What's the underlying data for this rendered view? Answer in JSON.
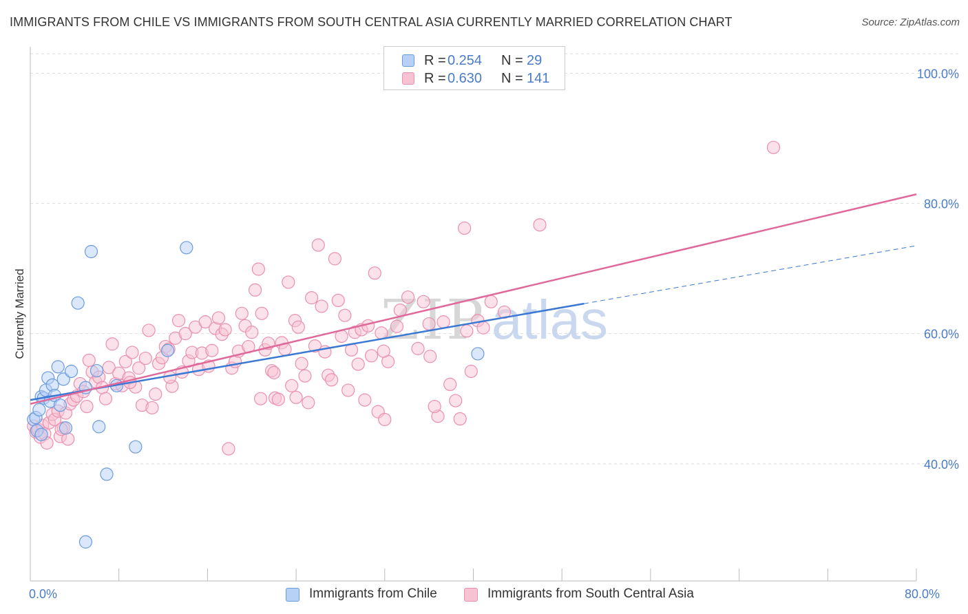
{
  "title": "IMMIGRANTS FROM CHILE VS IMMIGRANTS FROM SOUTH CENTRAL ASIA CURRENTLY MARRIED CORRELATION CHART",
  "source": "Source: ZipAtlas.com",
  "watermark": {
    "zip": "ZIP",
    "atlas": "atlas"
  },
  "colors": {
    "chile_fill": "#b7d0f5",
    "chile_stroke": "#6a9be0",
    "chile_line": "#3a78d4",
    "sca_fill": "#f7c3d3",
    "sca_stroke": "#eb8fae",
    "sca_line": "#e0689a",
    "grid": "#dddddd",
    "axis": "#bbbbbb",
    "tick_label": "#4a7cc9"
  },
  "stats": [
    {
      "r_label": "R =",
      "r_value": "0.254",
      "n_label": "N =",
      "n_value": "29",
      "swatch": "#b7d0f5",
      "swatch_border": "#6a9be0"
    },
    {
      "r_label": "R =",
      "r_value": "0.630",
      "n_label": "N =",
      "n_value": "141",
      "swatch": "#f7c3d3",
      "swatch_border": "#eb8fae"
    }
  ],
  "legend": [
    {
      "label": "Immigrants from Chile",
      "swatch": "#b7d0f5",
      "swatch_border": "#6a9be0"
    },
    {
      "label": "Immigrants from South Central Asia",
      "swatch": "#f7c3d3",
      "swatch_border": "#eb8fae"
    }
  ],
  "chart_data": {
    "type": "scatter",
    "title": "IMMIGRANTS FROM CHILE VS IMMIGRANTS FROM SOUTH CENTRAL ASIA CURRENTLY MARRIED CORRELATION CHART",
    "xlabel": "",
    "ylabel": "Currently Married",
    "xlim": [
      0,
      80
    ],
    "ylim": [
      22,
      103
    ],
    "x_tick_labels": [
      {
        "value": 0,
        "label": "0.0%"
      },
      {
        "value": 80,
        "label": "80.0%"
      }
    ],
    "y_tick_labels": [
      {
        "value": 40,
        "label": "40.0%"
      },
      {
        "value": 60,
        "label": "60.0%"
      },
      {
        "value": 80,
        "label": "80.0%"
      },
      {
        "value": 100,
        "label": "100.0%"
      }
    ],
    "y_gridlines": [
      40,
      60,
      80,
      100
    ],
    "grid": true,
    "legend_position": "bottom-center",
    "series": [
      {
        "name": "Immigrants from Chile",
        "color": "#6a9be0",
        "trend": {
          "x0": 0,
          "y0": 49.8,
          "x1": 50,
          "y1": 64.6,
          "dashed_to_x": 80,
          "dashed_to_y": 73.5
        },
        "points": [
          [
            0.3,
            46.8
          ],
          [
            0.5,
            47.1
          ],
          [
            0.6,
            45.1
          ],
          [
            0.8,
            48.3
          ],
          [
            1.0,
            50.3
          ],
          [
            1.2,
            50.1
          ],
          [
            1.4,
            51.3
          ],
          [
            1.6,
            53.2
          ],
          [
            1.8,
            49.6
          ],
          [
            2.0,
            52.1
          ],
          [
            2.2,
            50.5
          ],
          [
            2.5,
            54.9
          ],
          [
            2.7,
            49.0
          ],
          [
            3.0,
            53.0
          ],
          [
            3.2,
            45.5
          ],
          [
            3.7,
            54.2
          ],
          [
            4.3,
            64.7
          ],
          [
            5.0,
            51.7
          ],
          [
            5.5,
            72.6
          ],
          [
            6.0,
            54.3
          ],
          [
            6.2,
            45.7
          ],
          [
            6.9,
            38.4
          ],
          [
            7.8,
            52.0
          ],
          [
            9.5,
            42.6
          ],
          [
            12.4,
            57.4
          ],
          [
            14.1,
            73.2
          ],
          [
            40.4,
            56.9
          ],
          [
            5.0,
            28.0
          ],
          [
            1.0,
            44.5
          ]
        ]
      },
      {
        "name": "Immigrants from South Central Asia",
        "color": "#eb8fae",
        "trend": {
          "x0": 0,
          "y0": 49.2,
          "x1": 80,
          "y1": 81.4
        },
        "points": [
          [
            0.3,
            45.8
          ],
          [
            0.5,
            44.9
          ],
          [
            0.7,
            45.3
          ],
          [
            0.9,
            44.1
          ],
          [
            1.1,
            45.9
          ],
          [
            1.3,
            44.6
          ],
          [
            1.5,
            43.2
          ],
          [
            1.7,
            46.3
          ],
          [
            2.0,
            47.6
          ],
          [
            2.2,
            46.8
          ],
          [
            2.5,
            48.1
          ],
          [
            2.7,
            44.2
          ],
          [
            3.0,
            45.5
          ],
          [
            3.2,
            47.8
          ],
          [
            3.4,
            43.8
          ],
          [
            3.6,
            49.2
          ],
          [
            3.9,
            49.8
          ],
          [
            4.2,
            50.4
          ],
          [
            4.5,
            52.3
          ],
          [
            4.8,
            51.1
          ],
          [
            5.1,
            48.8
          ],
          [
            5.3,
            55.9
          ],
          [
            5.6,
            54.1
          ],
          [
            5.9,
            52.6
          ],
          [
            6.2,
            53.3
          ],
          [
            6.5,
            51.7
          ],
          [
            6.8,
            50.0
          ],
          [
            7.1,
            54.8
          ],
          [
            7.4,
            58.4
          ],
          [
            7.7,
            52.3
          ],
          [
            8.0,
            53.9
          ],
          [
            8.3,
            52.0
          ],
          [
            8.6,
            55.7
          ],
          [
            8.9,
            53.2
          ],
          [
            9.2,
            57.1
          ],
          [
            9.5,
            51.8
          ],
          [
            9.8,
            54.7
          ],
          [
            10.1,
            49.0
          ],
          [
            10.4,
            56.2
          ],
          [
            10.7,
            60.5
          ],
          [
            11.0,
            48.6
          ],
          [
            11.3,
            50.7
          ],
          [
            11.6,
            55.4
          ],
          [
            11.9,
            56.3
          ],
          [
            12.2,
            58.0
          ],
          [
            12.5,
            57.6
          ],
          [
            12.8,
            51.9
          ],
          [
            13.1,
            59.3
          ],
          [
            13.4,
            62.0
          ],
          [
            13.7,
            54.1
          ],
          [
            14.0,
            60.0
          ],
          [
            14.3,
            55.8
          ],
          [
            14.6,
            57.1
          ],
          [
            14.9,
            61.0
          ],
          [
            15.2,
            54.5
          ],
          [
            15.5,
            57.0
          ],
          [
            15.8,
            61.8
          ],
          [
            16.1,
            55.0
          ],
          [
            16.4,
            57.4
          ],
          [
            16.7,
            60.8
          ],
          [
            17.0,
            62.4
          ],
          [
            17.3,
            59.9
          ],
          [
            17.6,
            60.6
          ],
          [
            17.9,
            42.3
          ],
          [
            18.2,
            54.7
          ],
          [
            18.5,
            55.7
          ],
          [
            18.8,
            57.3
          ],
          [
            19.1,
            63.1
          ],
          [
            19.4,
            61.2
          ],
          [
            19.7,
            58.0
          ],
          [
            20.0,
            60.2
          ],
          [
            20.3,
            66.7
          ],
          [
            20.6,
            69.9
          ],
          [
            20.9,
            63.1
          ],
          [
            21.2,
            57.5
          ],
          [
            21.5,
            58.5
          ],
          [
            21.8,
            54.3
          ],
          [
            22.1,
            50.1
          ],
          [
            22.4,
            49.9
          ],
          [
            22.7,
            58.6
          ],
          [
            23.0,
            57.6
          ],
          [
            23.3,
            67.9
          ],
          [
            23.6,
            52.0
          ],
          [
            23.9,
            62.0
          ],
          [
            24.2,
            61.0
          ],
          [
            24.5,
            55.4
          ],
          [
            24.8,
            53.5
          ],
          [
            25.1,
            49.4
          ],
          [
            25.4,
            65.5
          ],
          [
            25.7,
            58.1
          ],
          [
            26.0,
            73.6
          ],
          [
            26.3,
            64.2
          ],
          [
            26.6,
            57.2
          ],
          [
            26.9,
            53.6
          ],
          [
            27.2,
            52.9
          ],
          [
            27.5,
            71.5
          ],
          [
            27.8,
            65.1
          ],
          [
            28.1,
            59.6
          ],
          [
            28.4,
            62.8
          ],
          [
            28.7,
            51.3
          ],
          [
            29.0,
            57.5
          ],
          [
            29.3,
            60.2
          ],
          [
            29.6,
            55.3
          ],
          [
            29.9,
            60.6
          ],
          [
            30.2,
            49.8
          ],
          [
            30.5,
            61.2
          ],
          [
            30.8,
            56.6
          ],
          [
            31.1,
            69.3
          ],
          [
            31.4,
            48.0
          ],
          [
            31.7,
            60.1
          ],
          [
            32.0,
            46.8
          ],
          [
            32.3,
            55.7
          ],
          [
            33.1,
            61.1
          ],
          [
            33.4,
            63.6
          ],
          [
            34.1,
            65.6
          ],
          [
            35.0,
            57.7
          ],
          [
            35.5,
            64.9
          ],
          [
            36.1,
            56.5
          ],
          [
            36.8,
            47.3
          ],
          [
            37.3,
            61.8
          ],
          [
            37.9,
            52.2
          ],
          [
            38.4,
            49.7
          ],
          [
            38.8,
            46.9
          ],
          [
            39.4,
            60.4
          ],
          [
            39.8,
            54.2
          ],
          [
            40.4,
            62.0
          ],
          [
            40.9,
            60.9
          ],
          [
            36.5,
            48.8
          ],
          [
            36.0,
            61.5
          ],
          [
            42.8,
            63.3
          ],
          [
            46.0,
            76.7
          ],
          [
            67.1,
            88.6
          ],
          [
            41.6,
            64.9
          ],
          [
            39.2,
            76.2
          ],
          [
            31.9,
            57.3
          ],
          [
            24.0,
            50.2
          ],
          [
            12.6,
            53.3
          ],
          [
            9.0,
            52.5
          ],
          [
            20.8,
            50.0
          ],
          [
            22.0,
            54.0
          ],
          [
            2.8,
            45.3
          ]
        ]
      }
    ]
  }
}
